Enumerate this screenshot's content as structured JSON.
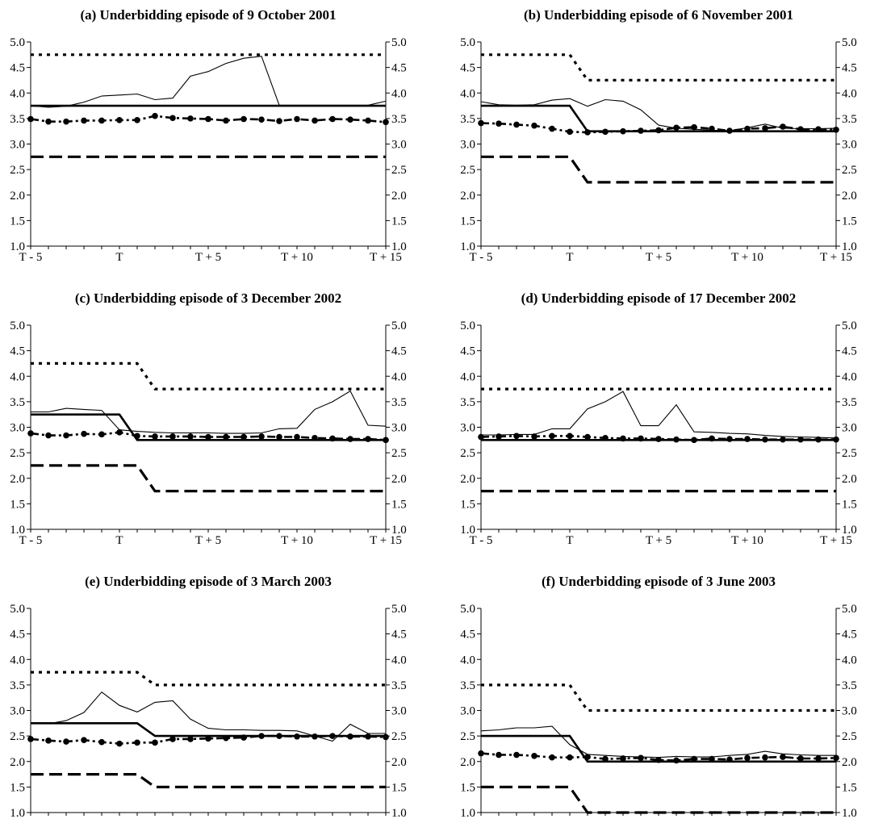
{
  "chart_data": [
    {
      "type": "line",
      "title": "(a) Underbidding episode of 9 October 2001",
      "x_tick_labels": [
        "T - 5",
        "T",
        "T + 5",
        "T + 10",
        "T + 15"
      ],
      "y_tick_labels": [
        "1.0",
        "1.5",
        "2.0",
        "2.5",
        "3.0",
        "3.5",
        "4.0",
        "4.5",
        "5.0"
      ],
      "ylim": [
        1.0,
        5.0
      ],
      "x": [
        -5,
        -4,
        -3,
        -2,
        -1,
        0,
        1,
        2,
        3,
        4,
        5,
        6,
        7,
        8,
        9,
        10,
        11,
        12,
        13,
        14,
        15
      ],
      "series": [
        {
          "style": "dotted-upper",
          "values": [
            4.75,
            4.75,
            4.75,
            4.75,
            4.75,
            4.75,
            4.75,
            4.75,
            4.75,
            4.75,
            4.75,
            4.75,
            4.75,
            4.75,
            4.75,
            4.75,
            4.75,
            4.75,
            4.75,
            4.75,
            4.75
          ]
        },
        {
          "style": "thin",
          "values": [
            3.75,
            3.72,
            3.74,
            3.82,
            3.94,
            3.96,
            3.98,
            3.87,
            3.9,
            4.33,
            4.42,
            4.58,
            4.68,
            4.72,
            3.76,
            3.76,
            3.76,
            3.76,
            3.76,
            3.76,
            3.84
          ]
        },
        {
          "style": "thick",
          "values": [
            3.75,
            3.75,
            3.75,
            3.75,
            3.75,
            3.75,
            3.75,
            3.75,
            3.75,
            3.75,
            3.75,
            3.75,
            3.75,
            3.75,
            3.75,
            3.75,
            3.75,
            3.75,
            3.75,
            3.75,
            3.75
          ]
        },
        {
          "style": "dash-dot-markers",
          "values": [
            3.49,
            3.44,
            3.44,
            3.46,
            3.46,
            3.47,
            3.47,
            3.55,
            3.51,
            3.5,
            3.49,
            3.46,
            3.49,
            3.48,
            3.45,
            3.49,
            3.46,
            3.49,
            3.48,
            3.46,
            3.43
          ]
        },
        {
          "style": "dashed-lower",
          "values": [
            2.75,
            2.75,
            2.75,
            2.75,
            2.75,
            2.75,
            2.75,
            2.75,
            2.75,
            2.75,
            2.75,
            2.75,
            2.75,
            2.75,
            2.75,
            2.75,
            2.75,
            2.75,
            2.75,
            2.75,
            2.75
          ]
        }
      ]
    },
    {
      "type": "line",
      "title": "(b) Underbidding episode of 6 November 2001",
      "x_tick_labels": [
        "T - 5",
        "T",
        "T + 5",
        "T + 10",
        "T + 15"
      ],
      "y_tick_labels": [
        "1.0",
        "1.5",
        "2.0",
        "2.5",
        "3.0",
        "3.5",
        "4.0",
        "4.5",
        "5.0"
      ],
      "ylim": [
        1.0,
        5.0
      ],
      "x": [
        -5,
        -4,
        -3,
        -2,
        -1,
        0,
        1,
        2,
        3,
        4,
        5,
        6,
        7,
        8,
        9,
        10,
        11,
        12,
        13,
        14,
        15
      ],
      "series": [
        {
          "style": "dotted-upper",
          "values": [
            4.75,
            4.75,
            4.75,
            4.75,
            4.75,
            4.75,
            4.25,
            4.25,
            4.25,
            4.25,
            4.25,
            4.25,
            4.25,
            4.25,
            4.25,
            4.25,
            4.25,
            4.25,
            4.25,
            4.25,
            4.25
          ]
        },
        {
          "style": "thin",
          "values": [
            3.83,
            3.77,
            3.76,
            3.77,
            3.86,
            3.89,
            3.74,
            3.87,
            3.84,
            3.67,
            3.37,
            3.31,
            3.29,
            3.27,
            3.26,
            3.32,
            3.39,
            3.31,
            3.3,
            3.3,
            3.31
          ]
        },
        {
          "style": "thick",
          "values": [
            3.75,
            3.75,
            3.75,
            3.75,
            3.75,
            3.75,
            3.25,
            3.25,
            3.25,
            3.25,
            3.25,
            3.25,
            3.25,
            3.25,
            3.25,
            3.25,
            3.25,
            3.25,
            3.25,
            3.25,
            3.25
          ]
        },
        {
          "style": "dash-dot-markers",
          "values": [
            3.41,
            3.4,
            3.38,
            3.36,
            3.3,
            3.24,
            3.23,
            3.24,
            3.25,
            3.26,
            3.27,
            3.32,
            3.33,
            3.3,
            3.26,
            3.3,
            3.31,
            3.34,
            3.29,
            3.29,
            3.28
          ]
        },
        {
          "style": "dashed-lower",
          "values": [
            2.75,
            2.75,
            2.75,
            2.75,
            2.75,
            2.75,
            2.25,
            2.25,
            2.25,
            2.25,
            2.25,
            2.25,
            2.25,
            2.25,
            2.25,
            2.25,
            2.25,
            2.25,
            2.25,
            2.25,
            2.25
          ]
        }
      ]
    },
    {
      "type": "line",
      "title": "(c) Underbidding episode of 3 December 2002",
      "x_tick_labels": [
        "T - 5",
        "T",
        "T + 5",
        "T + 10",
        "T + 15"
      ],
      "y_tick_labels": [
        "1.0",
        "1.5",
        "2.0",
        "2.5",
        "3.0",
        "3.5",
        "4.0",
        "4.5",
        "5.0"
      ],
      "ylim": [
        1.0,
        5.0
      ],
      "x": [
        -5,
        -4,
        -3,
        -2,
        -1,
        0,
        1,
        2,
        3,
        4,
        5,
        6,
        7,
        8,
        9,
        10,
        11,
        12,
        13,
        14,
        15
      ],
      "series": [
        {
          "style": "dotted-upper",
          "values": [
            4.25,
            4.25,
            4.25,
            4.25,
            4.25,
            4.25,
            4.25,
            3.75,
            3.75,
            3.75,
            3.75,
            3.75,
            3.75,
            3.75,
            3.75,
            3.75,
            3.75,
            3.75,
            3.75,
            3.75,
            3.75
          ]
        },
        {
          "style": "thin",
          "values": [
            3.3,
            3.3,
            3.37,
            3.35,
            3.33,
            2.95,
            2.92,
            2.9,
            2.89,
            2.89,
            2.89,
            2.88,
            2.88,
            2.89,
            2.97,
            2.98,
            3.35,
            3.5,
            3.71,
            3.04,
            3.02
          ]
        },
        {
          "style": "thick",
          "values": [
            3.25,
            3.25,
            3.25,
            3.25,
            3.25,
            3.25,
            2.75,
            2.75,
            2.75,
            2.75,
            2.75,
            2.75,
            2.75,
            2.75,
            2.75,
            2.75,
            2.75,
            2.75,
            2.75,
            2.75,
            2.75
          ]
        },
        {
          "style": "dash-dot-markers",
          "values": [
            2.88,
            2.84,
            2.84,
            2.87,
            2.86,
            2.9,
            2.83,
            2.82,
            2.82,
            2.82,
            2.81,
            2.81,
            2.81,
            2.82,
            2.81,
            2.81,
            2.79,
            2.78,
            2.77,
            2.77,
            2.75
          ]
        },
        {
          "style": "dashed-lower",
          "values": [
            2.25,
            2.25,
            2.25,
            2.25,
            2.25,
            2.25,
            2.25,
            1.75,
            1.75,
            1.75,
            1.75,
            1.75,
            1.75,
            1.75,
            1.75,
            1.75,
            1.75,
            1.75,
            1.75,
            1.75,
            1.75
          ]
        }
      ]
    },
    {
      "type": "line",
      "title": "(d) Underbidding episode of 17 December 2002",
      "x_tick_labels": [
        "T - 5",
        "T",
        "T + 5",
        "T + 10",
        "T + 15"
      ],
      "y_tick_labels": [
        "1.0",
        "1.5",
        "2.0",
        "2.5",
        "3.0",
        "3.5",
        "4.0",
        "4.5",
        "5.0"
      ],
      "ylim": [
        1.0,
        5.0
      ],
      "x": [
        -5,
        -4,
        -3,
        -2,
        -1,
        0,
        1,
        2,
        3,
        4,
        5,
        6,
        7,
        8,
        9,
        10,
        11,
        12,
        13,
        14,
        15
      ],
      "series": [
        {
          "style": "dotted-upper",
          "values": [
            3.75,
            3.75,
            3.75,
            3.75,
            3.75,
            3.75,
            3.75,
            3.75,
            3.75,
            3.75,
            3.75,
            3.75,
            3.75,
            3.75,
            3.75,
            3.75,
            3.75,
            3.75,
            3.75,
            3.75,
            3.75
          ]
        },
        {
          "style": "thin",
          "values": [
            2.85,
            2.85,
            2.86,
            2.86,
            2.97,
            2.97,
            3.36,
            3.5,
            3.7,
            3.03,
            3.03,
            3.44,
            2.91,
            2.9,
            2.88,
            2.87,
            2.84,
            2.82,
            2.81,
            2.8,
            2.79
          ]
        },
        {
          "style": "thick",
          "values": [
            2.75,
            2.75,
            2.75,
            2.75,
            2.75,
            2.75,
            2.75,
            2.75,
            2.75,
            2.75,
            2.75,
            2.75,
            2.75,
            2.75,
            2.75,
            2.75,
            2.75,
            2.75,
            2.75,
            2.75,
            2.75
          ]
        },
        {
          "style": "dash-dot-markers",
          "values": [
            2.81,
            2.82,
            2.83,
            2.82,
            2.83,
            2.83,
            2.81,
            2.79,
            2.78,
            2.78,
            2.77,
            2.76,
            2.75,
            2.78,
            2.77,
            2.77,
            2.76,
            2.76,
            2.76,
            2.76,
            2.76
          ]
        },
        {
          "style": "dashed-lower",
          "values": [
            1.75,
            1.75,
            1.75,
            1.75,
            1.75,
            1.75,
            1.75,
            1.75,
            1.75,
            1.75,
            1.75,
            1.75,
            1.75,
            1.75,
            1.75,
            1.75,
            1.75,
            1.75,
            1.75,
            1.75,
            1.75
          ]
        }
      ]
    },
    {
      "type": "line",
      "title": "(e) Underbidding episode of 3 March 2003",
      "x_tick_labels": [
        "T - 5",
        "T",
        "T + 5",
        "T + 10",
        "T + 15"
      ],
      "y_tick_labels": [
        "1.0",
        "1.5",
        "2.0",
        "2.5",
        "3.0",
        "3.5",
        "4.0",
        "4.5",
        "5.0"
      ],
      "ylim": [
        1.0,
        5.0
      ],
      "x": [
        -5,
        -4,
        -3,
        -2,
        -1,
        0,
        1,
        2,
        3,
        4,
        5,
        6,
        7,
        8,
        9,
        10,
        11,
        12,
        13,
        14,
        15
      ],
      "series": [
        {
          "style": "dotted-upper",
          "values": [
            3.75,
            3.75,
            3.75,
            3.75,
            3.75,
            3.75,
            3.75,
            3.5,
            3.5,
            3.5,
            3.5,
            3.5,
            3.5,
            3.5,
            3.5,
            3.5,
            3.5,
            3.5,
            3.5,
            3.5,
            3.5
          ]
        },
        {
          "style": "thin",
          "values": [
            2.75,
            2.74,
            2.8,
            2.96,
            3.36,
            3.1,
            2.97,
            3.16,
            3.19,
            2.83,
            2.65,
            2.62,
            2.62,
            2.61,
            2.61,
            2.6,
            2.5,
            2.4,
            2.73,
            2.55,
            2.55
          ]
        },
        {
          "style": "thick",
          "values": [
            2.75,
            2.75,
            2.75,
            2.75,
            2.75,
            2.75,
            2.75,
            2.5,
            2.5,
            2.5,
            2.5,
            2.5,
            2.5,
            2.5,
            2.5,
            2.5,
            2.5,
            2.5,
            2.5,
            2.5,
            2.5
          ]
        },
        {
          "style": "dash-dot-markers",
          "values": [
            2.44,
            2.41,
            2.39,
            2.42,
            2.38,
            2.35,
            2.37,
            2.37,
            2.44,
            2.44,
            2.45,
            2.46,
            2.47,
            2.5,
            2.5,
            2.49,
            2.49,
            2.5,
            2.49,
            2.49,
            2.48
          ]
        },
        {
          "style": "dashed-lower",
          "values": [
            1.75,
            1.75,
            1.75,
            1.75,
            1.75,
            1.75,
            1.75,
            1.5,
            1.5,
            1.5,
            1.5,
            1.5,
            1.5,
            1.5,
            1.5,
            1.5,
            1.5,
            1.5,
            1.5,
            1.5,
            1.5
          ]
        }
      ]
    },
    {
      "type": "line",
      "title": "(f) Underbidding episode of 3 June 2003",
      "x_tick_labels": [
        "T - 5",
        "T",
        "T + 5",
        "T + 10",
        "T + 15"
      ],
      "y_tick_labels": [
        "1.0",
        "1.5",
        "2.0",
        "2.5",
        "3.0",
        "3.5",
        "4.0",
        "4.5",
        "5.0"
      ],
      "ylim": [
        1.0,
        5.0
      ],
      "x": [
        -5,
        -4,
        -3,
        -2,
        -1,
        0,
        1,
        2,
        3,
        4,
        5,
        6,
        7,
        8,
        9,
        10,
        11,
        12,
        13,
        14,
        15
      ],
      "series": [
        {
          "style": "dotted-upper",
          "values": [
            3.5,
            3.5,
            3.5,
            3.5,
            3.5,
            3.5,
            3.0,
            3.0,
            3.0,
            3.0,
            3.0,
            3.0,
            3.0,
            3.0,
            3.0,
            3.0,
            3.0,
            3.0,
            3.0,
            3.0,
            3.0
          ]
        },
        {
          "style": "thin",
          "values": [
            2.6,
            2.62,
            2.66,
            2.66,
            2.69,
            2.33,
            2.14,
            2.12,
            2.1,
            2.09,
            2.08,
            2.1,
            2.09,
            2.09,
            2.12,
            2.14,
            2.2,
            2.15,
            2.13,
            2.12,
            2.12
          ]
        },
        {
          "style": "thick",
          "values": [
            2.5,
            2.5,
            2.5,
            2.5,
            2.5,
            2.5,
            2.0,
            2.0,
            2.0,
            2.0,
            2.0,
            2.0,
            2.0,
            2.0,
            2.0,
            2.0,
            2.0,
            2.0,
            2.0,
            2.0,
            2.0
          ]
        },
        {
          "style": "dash-dot-markers",
          "values": [
            2.16,
            2.13,
            2.13,
            2.11,
            2.08,
            2.08,
            2.09,
            2.05,
            2.06,
            2.07,
            2.03,
            2.02,
            2.05,
            2.05,
            2.04,
            2.07,
            2.08,
            2.09,
            2.06,
            2.06,
            2.07
          ]
        },
        {
          "style": "dashed-lower",
          "values": [
            1.5,
            1.5,
            1.5,
            1.5,
            1.5,
            1.5,
            1.0,
            1.0,
            1.0,
            1.0,
            1.0,
            1.0,
            1.0,
            1.0,
            1.0,
            1.0,
            1.0,
            1.0,
            1.0,
            1.0,
            1.0
          ]
        }
      ]
    }
  ]
}
